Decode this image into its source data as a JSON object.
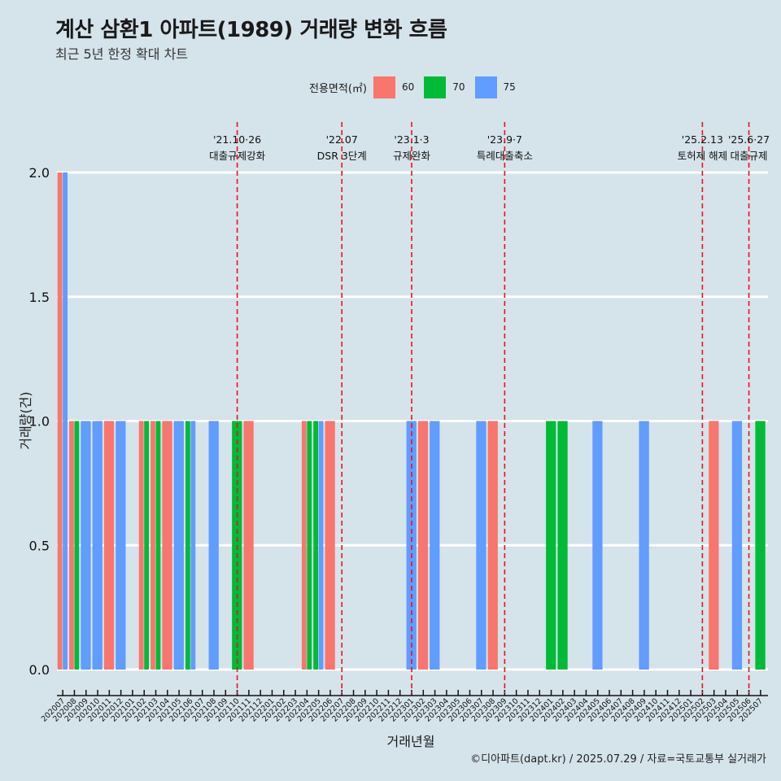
{
  "title": "계산 삼환1 아파트(1989) 거래량 변화 흐름",
  "subtitle": "최근 5년 한정 확대 차트",
  "legend": {
    "title": "전용면적(㎡)",
    "items": [
      {
        "label": "60",
        "color": "#f8766d"
      },
      {
        "label": "70",
        "color": "#00ba38"
      },
      {
        "label": "75",
        "color": "#619cff"
      }
    ]
  },
  "caption": "©디아파트(dapt.kr) / 2025.07.29 / 자료=국토교통부 실거래가",
  "chart_data": {
    "type": "bar",
    "xlabel": "거래년월",
    "ylabel": "거래량(건)",
    "ylim": [
      0,
      2
    ],
    "yticks": [
      "0.0",
      "0.5",
      "1.0",
      "1.5",
      "2.0"
    ],
    "grid": true,
    "legend_position": "top",
    "categories": [
      "202007",
      "202008",
      "202009",
      "202010",
      "202011",
      "202012",
      "202101",
      "202102",
      "202103",
      "202104",
      "202105",
      "202106",
      "202107",
      "202108",
      "202109",
      "202110",
      "202111",
      "202112",
      "202201",
      "202202",
      "202203",
      "202204",
      "202205",
      "202206",
      "202207",
      "202208",
      "202209",
      "202210",
      "202211",
      "202212",
      "202301",
      "202302",
      "202303",
      "202304",
      "202305",
      "202306",
      "202307",
      "202308",
      "202309",
      "202310",
      "202311",
      "202312",
      "202401",
      "202402",
      "202403",
      "202404",
      "202405",
      "202406",
      "202407",
      "202408",
      "202409",
      "202410",
      "202411",
      "202412",
      "202501",
      "202502",
      "202503",
      "202504",
      "202505",
      "202506",
      "202507"
    ],
    "series": [
      {
        "name": "60",
        "color": "#f8766d",
        "values": {
          "202007": 2,
          "202008": 1,
          "202011": 1,
          "202102": 1,
          "202103": 1,
          "202104": 1,
          "202111": 1,
          "202204": 1,
          "202206": 1,
          "202302": 1,
          "202308": 1,
          "202503": 1
        }
      },
      {
        "name": "70",
        "color": "#00ba38",
        "values": {
          "202008": 1,
          "202102": 1,
          "202103": 1,
          "202106": 1,
          "202110": 1,
          "202204": 1,
          "202205": 1,
          "202401": 1,
          "202402": 1,
          "202507": 1
        }
      },
      {
        "name": "75",
        "color": "#619cff",
        "values": {
          "202007": 2,
          "202009": 1,
          "202010": 1,
          "202012": 1,
          "202105": 1,
          "202106": 1,
          "202108": 1,
          "202205": 1,
          "202301": 1,
          "202303": 1,
          "202307": 1,
          "202405": 1,
          "202409": 1,
          "202505": 1
        }
      }
    ],
    "events": [
      {
        "at": "202110",
        "date": "'21.10·26",
        "label": "대출규제강화"
      },
      {
        "at": "202207",
        "date": "'22.07",
        "label": "DSR 3단계"
      },
      {
        "at": "202301",
        "date": "'23.1·3",
        "label": "규제완화"
      },
      {
        "at": "202309",
        "date": "'23.9·7",
        "label": "특례대출축소"
      },
      {
        "at": "202502",
        "date": "'25.2.13",
        "label": "토허제 해제"
      },
      {
        "at": "202506",
        "date": "'25.6·27",
        "label": "대출규제"
      }
    ]
  }
}
